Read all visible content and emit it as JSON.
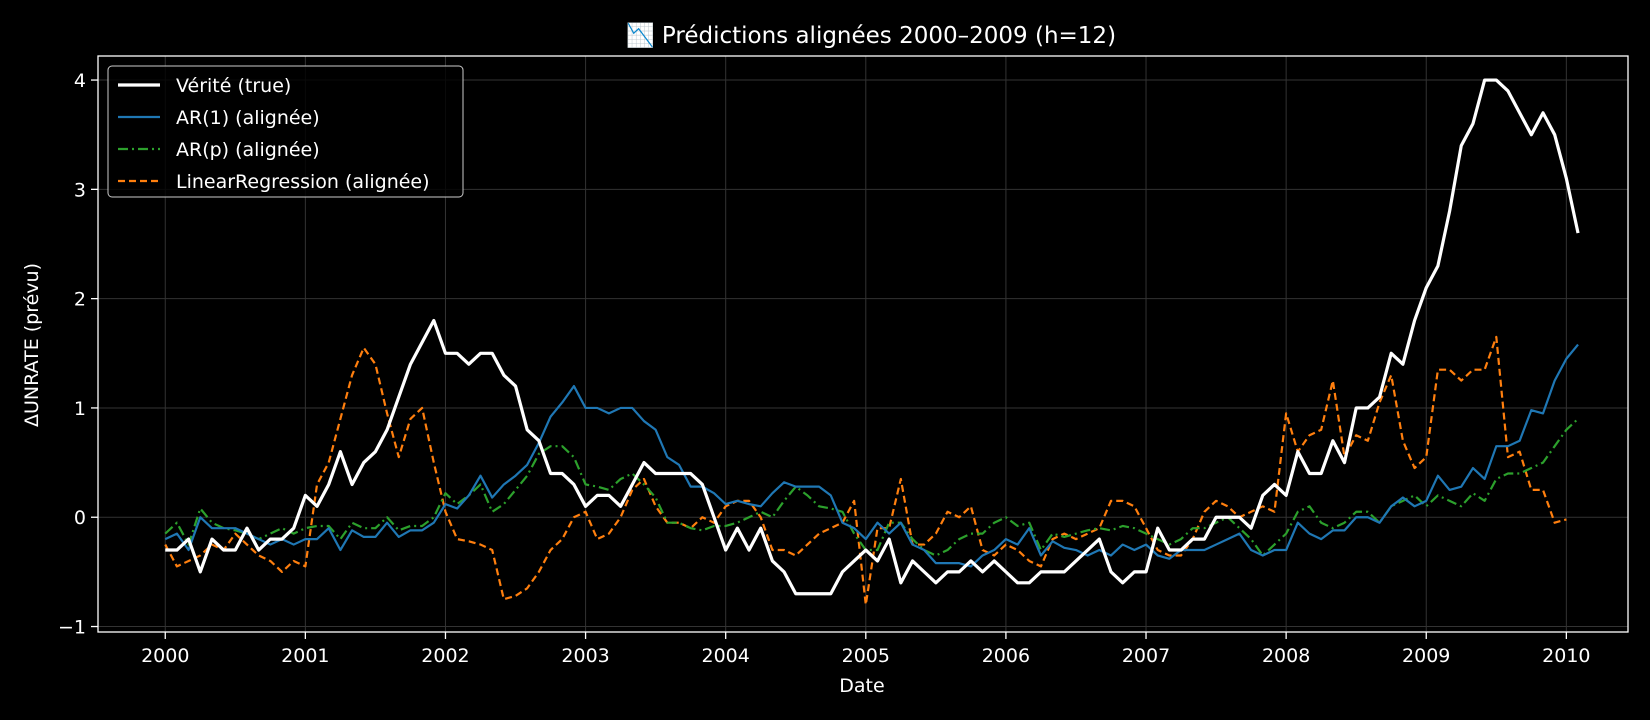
{
  "chart_data": {
    "type": "line",
    "title": "📉 Prédictions alignées 2000–2009 (h=12)",
    "title_icon": "chart-decreasing-icon",
    "xlabel": "Date",
    "ylabel": "ΔUNRATE (prévu)",
    "x_ticks": [
      "2000",
      "2001",
      "2002",
      "2003",
      "2004",
      "2005",
      "2006",
      "2007",
      "2008",
      "2009",
      "2010"
    ],
    "y_ticks": [
      "−1",
      "0",
      "1",
      "2",
      "3",
      "4"
    ],
    "xlim": [
      1999.52,
      2010.44
    ],
    "ylim": [
      -1.05,
      4.22
    ],
    "grid": true,
    "legend_position": "top-left",
    "colors": {
      "background": "#000000",
      "axes": "#ffffff",
      "grid": "#333333"
    },
    "series": [
      {
        "name": "Vérité (true)",
        "color": "#ffffff",
        "style": "solid-thick",
        "values": [
          -0.3,
          -0.3,
          -0.2,
          -0.5,
          -0.2,
          -0.3,
          -0.3,
          -0.1,
          -0.3,
          -0.2,
          -0.2,
          -0.1,
          0.2,
          0.1,
          0.3,
          0.6,
          0.3,
          0.5,
          0.6,
          0.8,
          1.1,
          1.4,
          1.6,
          1.8,
          1.5,
          1.5,
          1.4,
          1.5,
          1.5,
          1.3,
          1.2,
          0.8,
          0.7,
          0.4,
          0.4,
          0.3,
          0.1,
          0.2,
          0.2,
          0.1,
          0.3,
          0.5,
          0.4,
          0.4,
          0.4,
          0.4,
          0.3,
          0.0,
          -0.3,
          -0.1,
          -0.3,
          -0.1,
          -0.4,
          -0.5,
          -0.7,
          -0.7,
          -0.7,
          -0.7,
          -0.5,
          -0.4,
          -0.3,
          -0.4,
          -0.2,
          -0.6,
          -0.4,
          -0.5,
          -0.6,
          -0.5,
          -0.5,
          -0.4,
          -0.5,
          -0.4,
          -0.5,
          -0.6,
          -0.6,
          -0.5,
          -0.5,
          -0.5,
          -0.4,
          -0.3,
          -0.2,
          -0.5,
          -0.6,
          -0.5,
          -0.5,
          -0.1,
          -0.3,
          -0.3,
          -0.2,
          -0.2,
          0.0,
          0.0,
          0.0,
          -0.1,
          0.2,
          0.3,
          0.2,
          0.6,
          0.4,
          0.4,
          0.7,
          0.5,
          1.0,
          1.0,
          1.1,
          1.5,
          1.4,
          1.8,
          2.1,
          2.3,
          2.8,
          3.4,
          3.6,
          4.0,
          4.0,
          3.9,
          3.7,
          3.5,
          3.7,
          3.5,
          3.1,
          2.6
        ]
      },
      {
        "name": "AR(1) (alignée)",
        "color": "#1f77b4",
        "style": "solid",
        "values": [
          -0.2,
          -0.15,
          -0.3,
          0.0,
          -0.1,
          -0.1,
          -0.1,
          -0.15,
          -0.2,
          -0.25,
          -0.2,
          -0.25,
          -0.2,
          -0.2,
          -0.1,
          -0.3,
          -0.12,
          -0.18,
          -0.18,
          -0.05,
          -0.18,
          -0.12,
          -0.12,
          -0.05,
          0.12,
          0.08,
          0.2,
          0.38,
          0.18,
          0.3,
          0.38,
          0.48,
          0.68,
          0.92,
          1.05,
          1.2,
          1.0,
          1.0,
          0.95,
          1.0,
          1.0,
          0.88,
          0.8,
          0.55,
          0.48,
          0.28,
          0.28,
          0.22,
          0.12,
          0.15,
          0.12,
          0.1,
          0.22,
          0.32,
          0.28,
          0.28,
          0.28,
          0.2,
          -0.05,
          -0.1,
          -0.2,
          -0.05,
          -0.15,
          -0.05,
          -0.25,
          -0.3,
          -0.42,
          -0.42,
          -0.42,
          -0.45,
          -0.35,
          -0.3,
          -0.2,
          -0.25,
          -0.1,
          -0.35,
          -0.22,
          -0.28,
          -0.3,
          -0.35,
          -0.3,
          -0.35,
          -0.25,
          -0.3,
          -0.25,
          -0.35,
          -0.38,
          -0.3,
          -0.3,
          -0.3,
          -0.25,
          -0.2,
          -0.15,
          -0.3,
          -0.35,
          -0.3,
          -0.3,
          -0.05,
          -0.15,
          -0.2,
          -0.12,
          -0.12,
          0.0,
          0.0,
          -0.05,
          0.1,
          0.18,
          0.1,
          0.15,
          0.38,
          0.25,
          0.28,
          0.45,
          0.35,
          0.65,
          0.65,
          0.7,
          0.98,
          0.95,
          1.25,
          1.45,
          1.58
        ]
      },
      {
        "name": "AR(p) (alignée)",
        "color": "#2ca02c",
        "style": "dashdot",
        "values": [
          -0.15,
          -0.05,
          -0.25,
          0.08,
          -0.05,
          -0.1,
          -0.12,
          -0.15,
          -0.2,
          -0.15,
          -0.1,
          -0.15,
          -0.1,
          -0.08,
          -0.08,
          -0.2,
          -0.05,
          -0.1,
          -0.1,
          0.0,
          -0.12,
          -0.08,
          -0.08,
          0.0,
          0.22,
          0.12,
          0.2,
          0.3,
          0.05,
          0.12,
          0.25,
          0.38,
          0.58,
          0.65,
          0.65,
          0.55,
          0.3,
          0.28,
          0.25,
          0.35,
          0.4,
          0.3,
          0.18,
          -0.05,
          -0.05,
          -0.1,
          -0.12,
          -0.08,
          -0.08,
          -0.05,
          0.0,
          0.05,
          0.0,
          0.15,
          0.28,
          0.2,
          0.1,
          0.08,
          0.05,
          -0.15,
          -0.3,
          -0.3,
          -0.05,
          -0.05,
          -0.2,
          -0.3,
          -0.35,
          -0.3,
          -0.2,
          -0.15,
          -0.15,
          -0.05,
          0.0,
          -0.08,
          -0.05,
          -0.3,
          -0.15,
          -0.18,
          -0.15,
          -0.12,
          -0.1,
          -0.12,
          -0.08,
          -0.1,
          -0.15,
          -0.2,
          -0.25,
          -0.2,
          -0.1,
          -0.1,
          -0.05,
          0.0,
          -0.1,
          -0.2,
          -0.35,
          -0.25,
          -0.15,
          0.05,
          0.1,
          -0.05,
          -0.1,
          -0.05,
          0.05,
          0.05,
          -0.05,
          0.1,
          0.15,
          0.2,
          0.1,
          0.2,
          0.15,
          0.1,
          0.22,
          0.15,
          0.35,
          0.4,
          0.4,
          0.45,
          0.5,
          0.65,
          0.8,
          0.9
        ]
      },
      {
        "name": "LinearRegression (alignée)",
        "color": "#ff7f0e",
        "style": "dashed",
        "values": [
          -0.25,
          -0.45,
          -0.4,
          -0.35,
          -0.25,
          -0.3,
          -0.15,
          -0.25,
          -0.35,
          -0.4,
          -0.5,
          -0.4,
          -0.45,
          0.3,
          0.5,
          0.9,
          1.3,
          1.55,
          1.4,
          0.95,
          0.55,
          0.9,
          1.0,
          0.5,
          0.05,
          -0.2,
          -0.22,
          -0.25,
          -0.3,
          -0.75,
          -0.72,
          -0.65,
          -0.5,
          -0.3,
          -0.2,
          0.0,
          0.05,
          -0.2,
          -0.15,
          0.0,
          0.25,
          0.35,
          0.1,
          -0.05,
          -0.05,
          -0.1,
          0.0,
          -0.05,
          0.1,
          0.15,
          0.15,
          0.0,
          -0.3,
          -0.3,
          -0.35,
          -0.25,
          -0.15,
          -0.1,
          -0.05,
          0.15,
          -0.8,
          -0.1,
          -0.1,
          0.35,
          -0.25,
          -0.25,
          -0.15,
          0.05,
          0.0,
          0.1,
          -0.3,
          -0.35,
          -0.25,
          -0.3,
          -0.4,
          -0.45,
          -0.2,
          -0.15,
          -0.2,
          -0.15,
          -0.1,
          0.15,
          0.15,
          0.1,
          -0.1,
          -0.3,
          -0.35,
          -0.35,
          -0.2,
          0.05,
          0.15,
          0.1,
          0.0,
          0.05,
          0.1,
          0.05,
          0.95,
          0.6,
          0.75,
          0.8,
          1.25,
          0.55,
          0.75,
          0.7,
          1.05,
          1.3,
          0.7,
          0.45,
          0.55,
          1.35,
          1.35,
          1.25,
          1.35,
          1.35,
          1.65,
          0.55,
          0.6,
          0.25,
          0.25,
          -0.05,
          -0.02
        ]
      }
    ]
  }
}
